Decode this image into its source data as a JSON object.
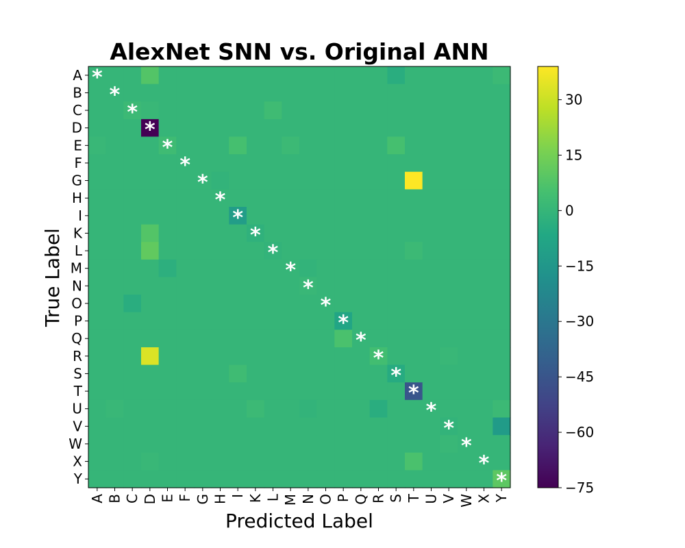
{
  "chart_data": {
    "type": "heatmap",
    "title": "AlexNet SNN vs. Original ANN",
    "xlabel": "Predicted Label",
    "ylabel": "True Label",
    "x_categories": [
      "A",
      "B",
      "C",
      "D",
      "E",
      "F",
      "G",
      "H",
      "I",
      "K",
      "L",
      "M",
      "N",
      "O",
      "P",
      "Q",
      "R",
      "S",
      "T",
      "U",
      "V",
      "W",
      "X",
      "Y"
    ],
    "y_categories": [
      "A",
      "B",
      "C",
      "D",
      "E",
      "F",
      "G",
      "H",
      "I",
      "K",
      "L",
      "M",
      "N",
      "O",
      "P",
      "Q",
      "R",
      "S",
      "T",
      "U",
      "V",
      "W",
      "X",
      "Y"
    ],
    "colorbar": {
      "colormap": "viridis",
      "range": [
        -75,
        39
      ],
      "ticks": [
        30,
        15,
        0,
        -15,
        -30,
        -45,
        -60,
        -75
      ],
      "tick_labels": [
        "30",
        "15",
        "0",
        "−15",
        "−30",
        "−45",
        "−60",
        "−75"
      ]
    },
    "diagonal_marker": "*",
    "values": [
      [
        0,
        0,
        0,
        8,
        0,
        0,
        0,
        0,
        0,
        0,
        0,
        0,
        0,
        0,
        0,
        0,
        0,
        -4,
        0,
        0,
        0,
        0,
        0,
        2
      ],
      [
        0,
        0,
        0,
        0,
        0,
        0,
        0,
        0,
        0,
        0,
        0,
        0,
        0,
        0,
        0,
        0,
        0,
        0,
        0,
        0,
        0,
        0,
        0,
        0
      ],
      [
        0,
        0,
        2,
        1,
        0,
        0,
        0,
        0,
        0,
        0,
        3,
        0,
        0,
        0,
        0,
        0,
        0,
        0,
        0,
        0,
        0,
        0,
        0,
        0
      ],
      [
        0,
        0,
        0,
        -75,
        0,
        0,
        0,
        0,
        0,
        0,
        0,
        0,
        0,
        0,
        0,
        0,
        0,
        0,
        0,
        0,
        0,
        0,
        0,
        0
      ],
      [
        1,
        0,
        0,
        0,
        3,
        0,
        0,
        0,
        5,
        0,
        0,
        2,
        0,
        0,
        0,
        0,
        0,
        5,
        0,
        0,
        0,
        0,
        0,
        0
      ],
      [
        0,
        0,
        0,
        0,
        0,
        0,
        0,
        0,
        0,
        0,
        0,
        0,
        0,
        0,
        0,
        0,
        0,
        0,
        0,
        0,
        0,
        0,
        0,
        0
      ],
      [
        0,
        0,
        0,
        0,
        0,
        0,
        0,
        -1,
        0,
        0,
        0,
        0,
        0,
        0,
        0,
        0,
        0,
        0,
        39,
        0,
        0,
        0,
        0,
        0
      ],
      [
        0,
        0,
        0,
        0,
        0,
        0,
        0,
        0,
        0,
        0,
        0,
        0,
        0,
        0,
        0,
        0,
        0,
        0,
        0,
        0,
        0,
        0,
        0,
        0
      ],
      [
        0,
        0,
        0,
        0,
        0,
        0,
        0,
        0,
        -12,
        0,
        0,
        0,
        0,
        0,
        0,
        0,
        0,
        0,
        0,
        0,
        0,
        0,
        0,
        0
      ],
      [
        0,
        0,
        0,
        8,
        0,
        0,
        0,
        0,
        0,
        -2,
        0,
        0,
        0,
        0,
        0,
        0,
        0,
        0,
        0,
        0,
        0,
        0,
        0,
        0
      ],
      [
        0,
        0,
        0,
        11,
        0,
        0,
        0,
        0,
        0,
        0,
        -1,
        0,
        0,
        0,
        0,
        0,
        0,
        0,
        2,
        0,
        0,
        0,
        0,
        0
      ],
      [
        0,
        0,
        0,
        0,
        -3,
        0,
        0,
        0,
        0,
        0,
        0,
        0,
        -1,
        0,
        0,
        0,
        0,
        0,
        0,
        0,
        0,
        0,
        0,
        0
      ],
      [
        0,
        0,
        0,
        0,
        0,
        0,
        0,
        0,
        0,
        0,
        0,
        0,
        1,
        0,
        0,
        0,
        0,
        0,
        0,
        0,
        0,
        0,
        0,
        0
      ],
      [
        0,
        0,
        -4,
        0,
        0,
        0,
        0,
        0,
        0,
        0,
        0,
        0,
        0,
        0,
        0,
        0,
        0,
        0,
        0,
        0,
        0,
        0,
        0,
        0
      ],
      [
        0,
        0,
        0,
        0,
        0,
        0,
        0,
        0,
        0,
        0,
        0,
        0,
        0,
        0,
        -8,
        0,
        0,
        0,
        0,
        0,
        0,
        0,
        0,
        0
      ],
      [
        0,
        0,
        0,
        0,
        0,
        0,
        0,
        0,
        0,
        0,
        0,
        0,
        0,
        0,
        6,
        0,
        0,
        0,
        0,
        0,
        0,
        0,
        0,
        0
      ],
      [
        0,
        0,
        0,
        33,
        0,
        0,
        0,
        0,
        0,
        0,
        0,
        0,
        0,
        0,
        0,
        0,
        4,
        0,
        0,
        0,
        1,
        0,
        0,
        0
      ],
      [
        0,
        0,
        0,
        0,
        0,
        0,
        0,
        0,
        3,
        0,
        0,
        0,
        0,
        0,
        0,
        0,
        0,
        -5,
        0,
        0,
        0,
        0,
        0,
        0
      ],
      [
        0,
        0,
        0,
        0,
        0,
        0,
        0,
        0,
        0,
        0,
        0,
        0,
        0,
        0,
        0,
        0,
        0,
        0,
        -45,
        0,
        0,
        0,
        0,
        0
      ],
      [
        0,
        1,
        0,
        0,
        0,
        0,
        0,
        0,
        0,
        2,
        0,
        0,
        -1,
        0,
        0,
        0,
        -4,
        0,
        0,
        0,
        0,
        0,
        0,
        2
      ],
      [
        0,
        0,
        0,
        0,
        0,
        0,
        0,
        0,
        0,
        0,
        0,
        0,
        0,
        0,
        0,
        0,
        0,
        0,
        0,
        0,
        -1,
        0,
        0,
        -13
      ],
      [
        0,
        0,
        0,
        0,
        0,
        0,
        0,
        0,
        0,
        0,
        0,
        0,
        0,
        0,
        0,
        0,
        0,
        0,
        0,
        0,
        1,
        0,
        0,
        0
      ],
      [
        0,
        0,
        0,
        1,
        0,
        0,
        0,
        0,
        0,
        0,
        0,
        0,
        0,
        0,
        0,
        0,
        0,
        0,
        6,
        0,
        0,
        0,
        0,
        0
      ],
      [
        0,
        0,
        0,
        0,
        0,
        0,
        0,
        0,
        0,
        0,
        0,
        0,
        0,
        0,
        0,
        0,
        0,
        0,
        0,
        0,
        0,
        0,
        0,
        10
      ]
    ]
  }
}
